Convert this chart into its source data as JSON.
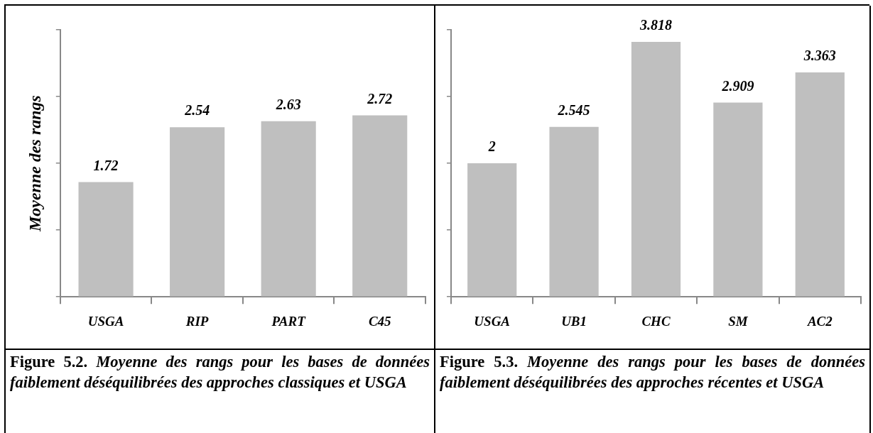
{
  "chart_data": [
    {
      "type": "bar",
      "ylabel": "Moyenne des rangs",
      "categories": [
        "USGA",
        "RIP",
        "PART",
        "C45"
      ],
      "series": [
        {
          "color": "#bfbfbf",
          "values": [
            1.72,
            2.54,
            2.63,
            2.72
          ]
        }
      ],
      "ylim": [
        0,
        4
      ],
      "yticks": [
        {
          "value": 0,
          "label": null
        },
        {
          "value": 1,
          "label": null
        },
        {
          "value": 2,
          "label": null
        },
        {
          "value": 3,
          "label": null
        },
        {
          "value": 4,
          "label": null
        }
      ],
      "tick_labels": "x",
      "data_labels": true,
      "grid": false,
      "legend": false,
      "annotations": [
        "Figure 5.2. Moyenne des rangs pour les bases de données faiblement déséquilibrées des approches classiques et USGA"
      ]
    },
    {
      "type": "bar",
      "categories": [
        "USGA",
        "UB1",
        "CHC",
        "SM",
        "AC2"
      ],
      "series": [
        {
          "color": "#bfbfbf",
          "values": [
            2,
            2.545,
            3.818,
            2.909,
            3.363
          ]
        }
      ],
      "ylim": [
        0,
        4
      ],
      "yticks": [
        {
          "value": 0,
          "label": null
        },
        {
          "value": 1,
          "label": null
        },
        {
          "value": 2,
          "label": null
        },
        {
          "value": 3,
          "label": null
        },
        {
          "value": 4,
          "label": null
        }
      ],
      "tick_labels": "x",
      "data_labels": true,
      "grid": false,
      "legend": false,
      "annotations": [
        "Figure 5.3. Moyenne des rangs pour les bases de données faiblement déséquilibrées des approches récentes et USGA"
      ]
    }
  ]
}
